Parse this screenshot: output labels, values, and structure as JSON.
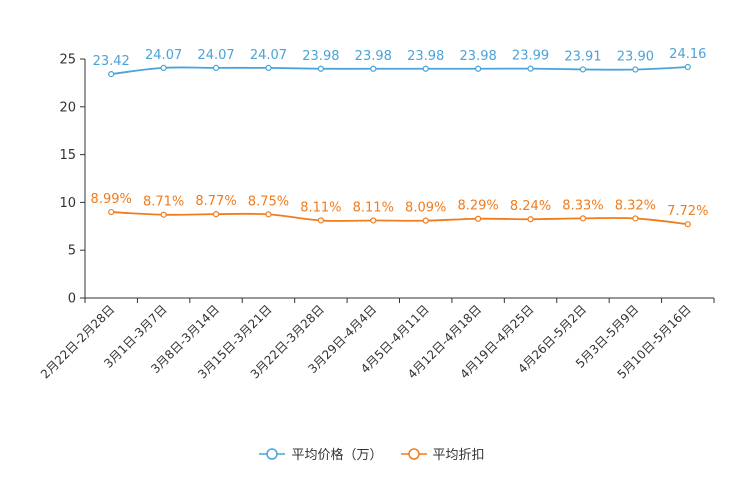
{
  "chart_data": {
    "type": "line",
    "categories": [
      "2月22日-2月28日",
      "3月1日-3月7日",
      "3月8日-3月14日",
      "3月15日-3月21日",
      "3月22日-3月28日",
      "3月29日-4月4日",
      "4月5日-4月11日",
      "4月12日-4月18日",
      "4月19日-4月25日",
      "4月26日-5月2日",
      "5月3日-5月9日",
      "5月10日-5月16日"
    ],
    "ylim": [
      0,
      25
    ],
    "yticks": [
      0,
      5,
      10,
      15,
      20,
      25
    ],
    "series": [
      {
        "name": "平均价格（万）",
        "color": "#4ba3d8",
        "values": [
          23.42,
          24.07,
          24.07,
          24.07,
          23.98,
          23.98,
          23.98,
          23.98,
          23.99,
          23.91,
          23.9,
          24.16
        ],
        "labels": [
          "23.42",
          "24.07",
          "24.07",
          "24.07",
          "23.98",
          "23.98",
          "23.98",
          "23.98",
          "23.99",
          "23.91",
          "23.90",
          "24.16"
        ]
      },
      {
        "name": "平均折扣",
        "color": "#f07c1e",
        "values": [
          8.99,
          8.71,
          8.77,
          8.75,
          8.11,
          8.11,
          8.09,
          8.29,
          8.24,
          8.33,
          8.32,
          7.72
        ],
        "labels": [
          "8.99%",
          "8.71%",
          "8.77%",
          "8.75%",
          "8.11%",
          "8.11%",
          "8.09%",
          "8.29%",
          "8.24%",
          "8.33%",
          "8.32%",
          "7.72%"
        ]
      }
    ]
  }
}
